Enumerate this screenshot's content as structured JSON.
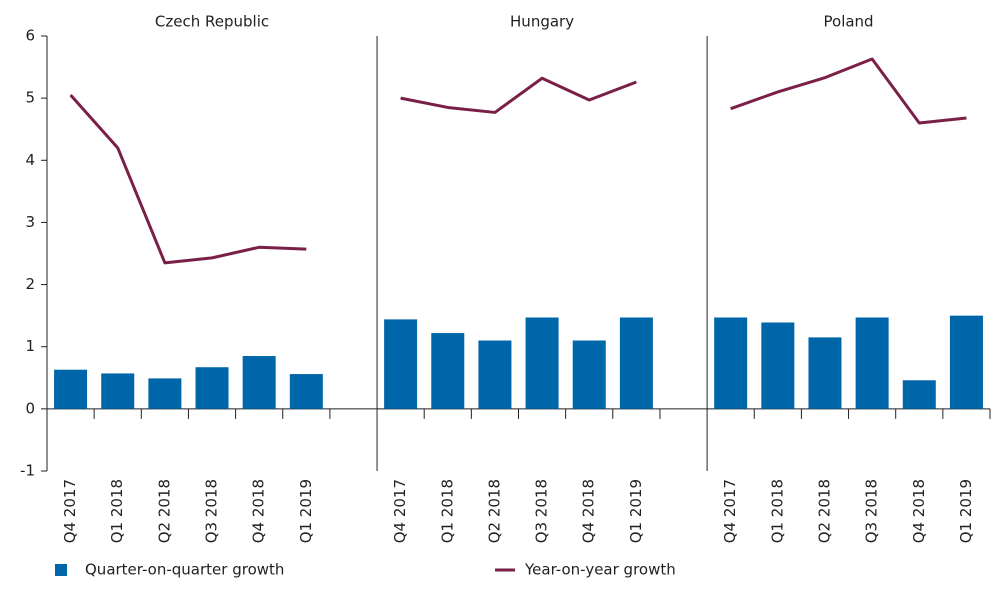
{
  "chart_data": {
    "type": "combo",
    "panels": [
      "Czech Republic",
      "Hungary",
      "Poland"
    ],
    "categories": [
      "Q4 2017",
      "Q1 2018",
      "Q2 2018",
      "Q3 2018",
      "Q4 2018",
      "Q1 2019"
    ],
    "series": [
      {
        "name": "Quarter-on-quarter growth",
        "type": "bar",
        "color": "#0066aa",
        "values": [
          [
            0.63,
            0.57,
            0.49,
            0.67,
            0.85,
            0.56
          ],
          [
            1.44,
            1.22,
            1.1,
            1.47,
            1.1,
            1.47
          ],
          [
            1.47,
            1.39,
            1.15,
            1.47,
            0.46,
            1.5
          ]
        ]
      },
      {
        "name": "Year-on-year growth",
        "type": "line",
        "color": "#7a2048",
        "values": [
          [
            5.05,
            4.2,
            2.35,
            2.43,
            2.6,
            2.57
          ],
          [
            5.0,
            4.85,
            4.77,
            5.32,
            4.97,
            5.26
          ],
          [
            4.83,
            5.1,
            5.33,
            5.63,
            4.6,
            4.68
          ]
        ]
      }
    ],
    "ylim": [
      -1,
      6
    ],
    "yticks": [
      -1,
      0,
      1,
      2,
      3,
      4,
      5,
      6
    ]
  }
}
